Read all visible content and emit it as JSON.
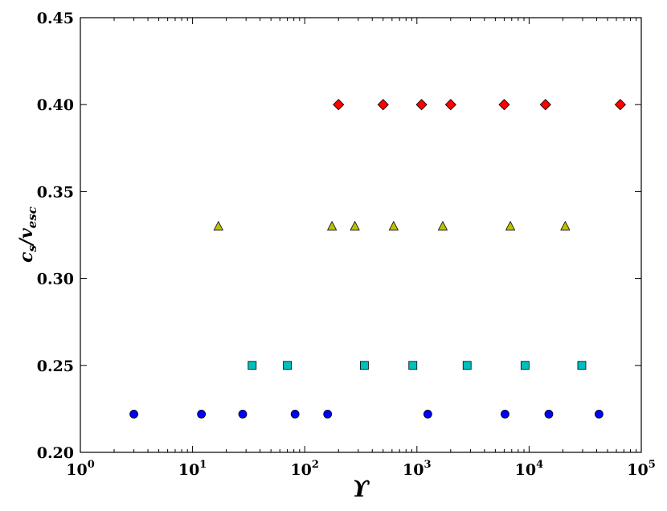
{
  "chart_data": {
    "type": "scatter",
    "xscale": "log",
    "xlim": [
      1,
      100000
    ],
    "ylim": [
      0.2,
      0.45
    ],
    "xlabel": "ϒ",
    "ylabel": "c_s/v_esc",
    "ylabel_main": "c",
    "ylabel_sub1": "s",
    "ylabel_slash": "/v",
    "ylabel_sub2": "esc",
    "grid": false,
    "legend": "none",
    "x_tick_labels": [
      {
        "base": "10",
        "exp": "0"
      },
      {
        "base": "10",
        "exp": "1"
      },
      {
        "base": "10",
        "exp": "2"
      },
      {
        "base": "10",
        "exp": "3"
      },
      {
        "base": "10",
        "exp": "4"
      },
      {
        "base": "10",
        "exp": "5"
      }
    ],
    "y_tick_labels": [
      "0.20",
      "0.25",
      "0.30",
      "0.35",
      "0.40",
      "0.45"
    ],
    "series": [
      {
        "marker": "diamond",
        "color": "#ff0000",
        "x": [
          200,
          500,
          1100,
          2000,
          6000,
          14000,
          65000
        ],
        "y": [
          0.4,
          0.4,
          0.4,
          0.4,
          0.4,
          0.4,
          0.4
        ]
      },
      {
        "marker": "triangle",
        "color": "#bfbf00",
        "x": [
          17,
          175,
          280,
          620,
          1700,
          6800,
          21000
        ],
        "y": [
          0.33,
          0.33,
          0.33,
          0.33,
          0.33,
          0.33,
          0.33
        ]
      },
      {
        "marker": "square",
        "color": "#00bfbf",
        "x": [
          34,
          70,
          340,
          920,
          2800,
          9200,
          29500
        ],
        "y": [
          0.25,
          0.25,
          0.25,
          0.25,
          0.25,
          0.25,
          0.25
        ]
      },
      {
        "marker": "circle",
        "color": "#0000ff",
        "x": [
          3,
          12,
          28,
          82,
          160,
          1250,
          6100,
          15000,
          42000
        ],
        "y": [
          0.222,
          0.222,
          0.222,
          0.222,
          0.222,
          0.222,
          0.222,
          0.222,
          0.222
        ]
      }
    ]
  }
}
